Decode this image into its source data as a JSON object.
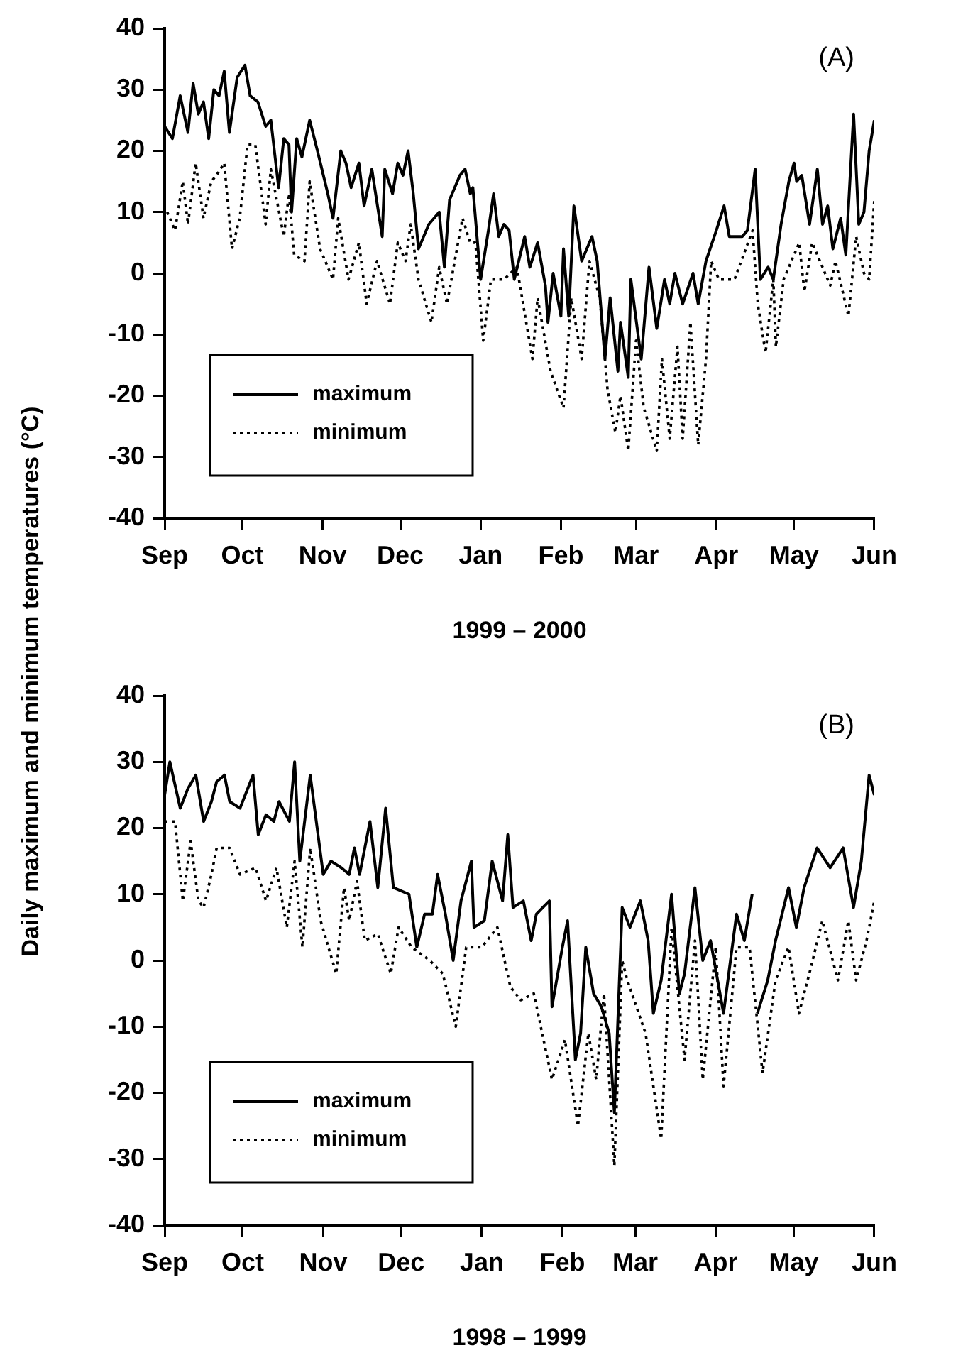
{
  "chart_data": [
    {
      "type": "line",
      "xlabel": "1999 – 2000",
      "ylabel": "Daily maximum and minimum temperatures (°C)",
      "annotations": [
        "(A)"
      ],
      "legend": "bottom left",
      "grid": false,
      "xlim": [
        "1999-09-01",
        "2000-06-01"
      ],
      "xticks": [
        {
          "value": "1999-09-01",
          "label": "Sep"
        },
        {
          "value": "1999-10-01",
          "label": "Oct"
        },
        {
          "value": "1999-11-01",
          "label": "Nov"
        },
        {
          "value": "1999-12-01",
          "label": "Dec"
        },
        {
          "value": "2000-01-01",
          "label": "Jan"
        },
        {
          "value": "2000-02-01",
          "label": "Feb"
        },
        {
          "value": "2000-03-01",
          "label": "Mar"
        },
        {
          "value": "2000-04-01",
          "label": "Apr"
        },
        {
          "value": "2000-05-01",
          "label": "May"
        },
        {
          "value": "2000-06-01",
          "label": "Jun"
        }
      ],
      "ylim": [
        -40,
        40
      ],
      "yticks": [
        -40,
        -30,
        -20,
        -10,
        0,
        10,
        20,
        30,
        40
      ],
      "series": [
        {
          "name": "maximum",
          "color": "#000000",
          "line_style": "solid",
          "x": [
            "1999-09-01",
            "1999-09-04",
            "1999-09-07",
            "1999-09-10",
            "1999-09-12",
            "1999-09-14",
            "1999-09-16",
            "1999-09-18",
            "1999-09-20",
            "1999-09-22",
            "1999-09-24",
            "1999-09-26",
            "1999-09-29",
            "1999-10-02",
            "1999-10-04",
            "1999-10-07",
            "1999-10-10",
            "1999-10-12",
            "1999-10-15",
            "1999-10-17",
            "1999-10-19",
            "1999-10-20",
            "1999-10-22",
            "1999-10-24",
            "1999-10-27",
            "1999-10-30",
            "1999-11-03",
            "1999-11-05",
            "1999-11-08",
            "1999-11-10",
            "1999-11-12",
            "1999-11-15",
            "1999-11-17",
            "1999-11-20",
            "1999-11-24",
            "1999-11-25",
            "1999-11-28",
            "1999-11-30",
            "1999-12-02",
            "1999-12-04",
            "1999-12-06",
            "1999-12-08",
            "1999-12-12",
            "1999-12-16",
            "1999-12-18",
            "1999-12-20",
            "1999-12-24",
            "1999-12-26",
            "1999-12-28",
            "1999-12-29",
            "2000-01-01",
            "2000-01-04",
            "2000-01-06",
            "2000-01-08",
            "2000-01-10",
            "2000-01-12",
            "2000-01-14",
            "2000-01-18",
            "2000-01-20",
            "2000-01-23",
            "2000-01-26",
            "2000-01-27",
            "2000-01-29",
            "2000-02-01",
            "2000-02-02",
            "2000-02-04",
            "2000-02-06",
            "2000-02-09",
            "2000-02-13",
            "2000-02-15",
            "2000-02-18",
            "2000-02-20",
            "2000-02-23",
            "2000-02-24",
            "2000-02-27",
            "2000-02-28",
            "2000-03-03",
            "2000-03-06",
            "2000-03-09",
            "2000-03-12",
            "2000-03-14",
            "2000-03-16",
            "2000-03-19",
            "2000-03-23",
            "2000-03-25",
            "2000-03-28",
            "2000-04-01",
            "2000-04-04",
            "2000-04-06",
            "2000-04-11",
            "2000-04-13",
            "2000-04-16",
            "2000-04-18",
            "2000-04-21",
            "2000-04-23",
            "2000-04-26",
            "2000-04-29",
            "2000-05-01",
            "2000-05-02",
            "2000-05-04",
            "2000-05-07",
            "2000-05-10",
            "2000-05-12",
            "2000-05-14",
            "2000-05-16",
            "2000-05-19",
            "2000-05-21",
            "2000-05-24",
            "2000-05-26",
            "2000-05-28",
            "2000-05-30",
            "2000-06-01"
          ],
          "values": [
            24,
            22,
            29,
            23,
            31,
            26,
            28,
            22,
            30,
            29,
            33,
            23,
            32,
            34,
            29,
            28,
            24,
            25,
            14,
            22,
            21,
            10,
            22,
            19,
            25,
            20,
            13,
            9,
            20,
            18,
            14,
            18,
            11,
            17,
            6,
            17,
            13,
            18,
            16,
            20,
            13,
            4,
            8,
            10,
            1,
            12,
            16,
            17,
            13,
            14,
            -1,
            7,
            13,
            6,
            8,
            7,
            -1,
            6,
            1,
            5,
            -2,
            -8,
            0,
            -7,
            4,
            -7,
            11,
            2,
            6,
            2,
            -14,
            -4,
            -16,
            -8,
            -17,
            -1,
            -14,
            1,
            -9,
            -1,
            -5,
            0,
            -5,
            0,
            -5,
            2,
            7,
            11,
            6,
            6,
            7,
            17,
            -1,
            1,
            -1,
            8,
            15,
            18,
            15,
            16,
            8,
            17,
            8,
            11,
            4,
            9,
            3,
            26,
            8,
            10,
            20,
            25
          ]
        },
        {
          "name": "minimum",
          "color": "#000000",
          "line_style": "dotted",
          "x": [
            "1999-09-02",
            "1999-09-05",
            "1999-09-08",
            "1999-09-10",
            "1999-09-13",
            "1999-09-16",
            "1999-09-19",
            "1999-09-21",
            "1999-09-24",
            "1999-09-27",
            "1999-09-30",
            "1999-10-03",
            "1999-10-06",
            "1999-10-10",
            "1999-10-12",
            "1999-10-17",
            "1999-10-19",
            "1999-10-21",
            "1999-10-25",
            "1999-10-27",
            "1999-10-31",
            "1999-11-05",
            "1999-11-07",
            "1999-11-11",
            "1999-11-15",
            "1999-11-18",
            "1999-11-22",
            "1999-11-27",
            "1999-11-30",
            "1999-12-03",
            "1999-12-05",
            "1999-12-08",
            "1999-12-13",
            "1999-12-16",
            "1999-12-19",
            "1999-12-25",
            "1999-12-28",
            "1999-12-30",
            "2000-01-02",
            "2000-01-05",
            "2000-01-10",
            "2000-01-15",
            "2000-01-21",
            "2000-01-23",
            "2000-01-28",
            "2000-02-02",
            "2000-02-05",
            "2000-02-09",
            "2000-02-12",
            "2000-02-16",
            "2000-02-19",
            "2000-02-22",
            "2000-02-24",
            "2000-02-27",
            "2000-03-01",
            "2000-03-04",
            "2000-03-09",
            "2000-03-11",
            "2000-03-14",
            "2000-03-17",
            "2000-03-19",
            "2000-03-22",
            "2000-03-25",
            "2000-03-28",
            "2000-03-30",
            "2000-04-02",
            "2000-04-08",
            "2000-04-15",
            "2000-04-17",
            "2000-04-20",
            "2000-04-23",
            "2000-04-24",
            "2000-04-27",
            "2000-05-03",
            "2000-05-05",
            "2000-05-08",
            "2000-05-15",
            "2000-05-17",
            "2000-05-22",
            "2000-05-25",
            "2000-05-28",
            "2000-05-30",
            "2000-06-01"
          ],
          "values": [
            10,
            7,
            15,
            8,
            18,
            9,
            15,
            16,
            18,
            4,
            9,
            21,
            21,
            8,
            17,
            6,
            13,
            3,
            2,
            15,
            4,
            -1,
            9,
            -1,
            5,
            -5,
            2,
            -5,
            5,
            2,
            8,
            -1,
            -8,
            1,
            -5,
            9,
            5,
            5,
            -11,
            -1,
            -1,
            1,
            -14,
            -4,
            -16,
            -22,
            -4,
            -14,
            2,
            -4,
            -19,
            -26,
            -20,
            -29,
            -11,
            -22,
            -29,
            -14,
            -27,
            -12,
            -27,
            -8,
            -28,
            -14,
            2,
            -1,
            -1,
            7,
            -5,
            -13,
            -1,
            -12,
            -1,
            5,
            -3,
            5,
            -2,
            2,
            -7,
            6,
            0,
            -1,
            12
          ]
        }
      ]
    },
    {
      "type": "line",
      "xlabel": "1998 – 1999",
      "annotations": [
        "(B)"
      ],
      "legend": "bottom left",
      "grid": false,
      "xlim": [
        "1998-09-01",
        "1999-06-01"
      ],
      "xticks": [
        {
          "value": "1998-09-01",
          "label": "Sep"
        },
        {
          "value": "1998-10-01",
          "label": "Oct"
        },
        {
          "value": "1998-11-01",
          "label": "Nov"
        },
        {
          "value": "1998-12-01",
          "label": "Dec"
        },
        {
          "value": "1999-01-01",
          "label": "Jan"
        },
        {
          "value": "1999-02-01",
          "label": "Feb"
        },
        {
          "value": "1999-03-01",
          "label": "Mar"
        },
        {
          "value": "1999-04-01",
          "label": "Apr"
        },
        {
          "value": "1999-05-01",
          "label": "May"
        },
        {
          "value": "1999-06-01",
          "label": "Jun"
        }
      ],
      "ylim": [
        -40,
        40
      ],
      "yticks": [
        -40,
        -30,
        -20,
        -10,
        0,
        10,
        20,
        30,
        40
      ],
      "series": [
        {
          "name": "maximum",
          "color": "#000000",
          "line_style": "solid",
          "x": [
            "1998-09-01",
            "1998-09-03",
            "1998-09-07",
            "1998-09-10",
            "1998-09-13",
            "1998-09-16",
            "1998-09-19",
            "1998-09-21",
            "1998-09-24",
            "1998-09-26",
            "1998-09-30",
            "1998-10-05",
            "1998-10-07",
            "1998-10-10",
            "1998-10-13",
            "1998-10-15",
            "1998-10-19",
            "1998-10-21",
            "1998-10-23",
            "1998-10-27",
            "1998-11-01",
            "1998-11-04",
            "1998-11-08",
            "1998-11-11",
            "1998-11-13",
            "1998-11-15",
            "1998-11-19",
            "1998-11-22",
            "1998-11-25",
            "1998-11-28",
            "1998-12-04",
            "1998-12-07",
            "1998-12-10",
            "1998-12-13",
            "1998-12-15",
            "1998-12-18",
            "1998-12-21",
            "1998-12-24",
            "1998-12-28",
            "1998-12-29",
            "1999-01-02",
            "1999-01-05",
            "1999-01-09",
            "1999-01-11",
            "1999-01-13",
            "1999-01-17",
            "1999-01-20",
            "1999-01-22",
            "1999-01-27",
            "1999-01-28",
            "1999-02-01",
            "1999-02-03",
            "1999-02-06",
            "1999-02-08",
            "1999-02-10",
            "1999-02-13",
            "1999-02-16",
            "1999-02-19",
            "1999-02-21",
            "1999-02-24",
            "1999-02-27",
            "1999-03-03",
            "1999-03-06",
            "1999-03-08",
            "1999-03-11",
            "1999-03-15",
            "1999-03-18",
            "1999-03-20",
            "1999-03-24",
            "1999-03-27",
            "1999-03-30",
            "1999-04-04",
            "1999-04-09",
            "1999-04-12",
            "1999-04-15",
            "1999-04-16",
            "1999-04-17",
            "1999-04-21",
            "1999-04-24",
            "1999-04-29",
            "1999-05-02",
            "1999-05-05",
            "1999-05-10",
            "1999-05-15",
            "1999-05-20",
            "1999-05-24",
            "1999-05-27",
            "1999-05-30",
            "1999-06-01"
          ],
          "values": [
            25,
            30,
            23,
            26,
            28,
            21,
            24,
            27,
            28,
            24,
            23,
            28,
            19,
            22,
            21,
            24,
            21,
            30,
            15,
            28,
            13,
            15,
            14,
            13,
            17,
            13,
            21,
            11,
            23,
            11,
            10,
            2,
            7,
            7,
            13,
            7,
            0,
            9,
            15,
            5,
            6,
            15,
            9,
            19,
            8,
            9,
            3,
            7,
            9,
            -7,
            2,
            6,
            -15,
            -11,
            2,
            -5,
            -7,
            -11,
            -23,
            8,
            5,
            9,
            3,
            -8,
            -3,
            10,
            -5,
            -2,
            11,
            0,
            3,
            -8,
            7,
            3,
            10,
            null,
            -8,
            -3,
            3,
            11,
            5,
            11,
            17,
            14,
            17,
            8,
            15,
            28,
            25
          ]
        },
        {
          "name": "minimum",
          "color": "#000000",
          "line_style": "dotted",
          "x": [
            "1998-09-01",
            "1998-09-05",
            "1998-09-08",
            "1998-09-11",
            "1998-09-14",
            "1998-09-16",
            "1998-09-19",
            "1998-09-21",
            "1998-09-26",
            "1998-09-30",
            "1998-10-06",
            "1998-10-10",
            "1998-10-14",
            "1998-10-18",
            "1998-10-21",
            "1998-10-24",
            "1998-10-27",
            "1998-10-31",
            "1998-11-06",
            "1998-11-09",
            "1998-11-11",
            "1998-11-14",
            "1998-11-17",
            "1998-11-22",
            "1998-11-27",
            "1998-11-30",
            "1998-12-05",
            "1998-12-12",
            "1998-12-17",
            "1998-12-22",
            "1998-12-26",
            "1999-01-01",
            "1999-01-07",
            "1999-01-12",
            "1999-01-16",
            "1999-01-21",
            "1999-01-28",
            "1999-02-02",
            "1999-02-07",
            "1999-02-11",
            "1999-02-14",
            "1999-02-17",
            "1999-02-21",
            "1999-02-24",
            "1999-02-26",
            "1999-03-05",
            "1999-03-11",
            "1999-03-15",
            "1999-03-20",
            "1999-03-24",
            "1999-03-27",
            "1999-04-01",
            "1999-04-04",
            "1999-04-09",
            "1999-04-14",
            "1999-04-19",
            "1999-04-24",
            "1999-04-29",
            "1999-05-03",
            "1999-05-07",
            "1999-05-12",
            "1999-05-18",
            "1999-05-22",
            "1999-05-25",
            "1999-05-29",
            "1999-06-01"
          ],
          "values": [
            21,
            21,
            9,
            18,
            9,
            8,
            13,
            17,
            17,
            13,
            14,
            9,
            14,
            5,
            15,
            2,
            17,
            6,
            -2,
            11,
            6,
            12,
            3,
            4,
            -2,
            5,
            2,
            0,
            -2,
            -10,
            2,
            2,
            5,
            -4,
            -6,
            -5,
            -18,
            -12,
            -25,
            -11,
            -18,
            -5,
            -31,
            0,
            -3,
            -11,
            -27,
            5,
            -15,
            3,
            -18,
            2,
            -19,
            2,
            2,
            -17,
            -3,
            2,
            -8,
            -2,
            6,
            -3,
            6,
            -3,
            3,
            9
          ]
        }
      ]
    }
  ]
}
